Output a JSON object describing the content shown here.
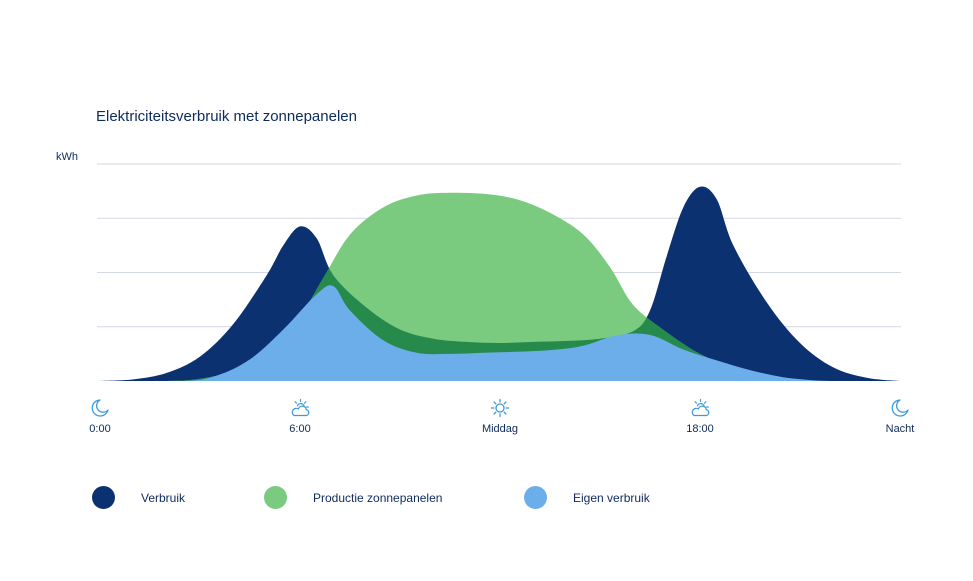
{
  "chart_data": {
    "type": "area",
    "title": "Elektriciteitsverbruik met zonnepanelen",
    "ylabel": "kWh",
    "xlabel": "",
    "x_ticks": [
      {
        "label": "0:00",
        "icon": "moon-icon"
      },
      {
        "label": "6:00",
        "icon": "partly-cloudy-icon"
      },
      {
        "label": "Middag",
        "icon": "sun-icon"
      },
      {
        "label": "18:00",
        "icon": "partly-cloudy-icon"
      },
      {
        "label": "Nacht",
        "icon": "moon-icon"
      }
    ],
    "x_hours": [
      0,
      6,
      12,
      18,
      24
    ],
    "ylim": [
      0,
      4
    ],
    "grid": true,
    "legend_position": "bottom",
    "series": [
      {
        "name": "Verbruik",
        "color": "#0c3170",
        "points": [
          [
            0,
            0
          ],
          [
            1,
            0.03
          ],
          [
            2,
            0.15
          ],
          [
            3,
            0.45
          ],
          [
            4,
            1.05
          ],
          [
            5,
            1.95
          ],
          [
            5.5,
            2.5
          ],
          [
            6,
            2.85
          ],
          [
            6.5,
            2.63
          ],
          [
            7,
            1.95
          ],
          [
            8,
            1.35
          ],
          [
            9,
            0.95
          ],
          [
            10,
            0.78
          ],
          [
            11,
            0.72
          ],
          [
            12,
            0.7
          ],
          [
            13,
            0.72
          ],
          [
            14,
            0.74
          ],
          [
            15,
            0.78
          ],
          [
            16,
            0.92
          ],
          [
            16.5,
            1.3
          ],
          [
            17,
            2.3
          ],
          [
            17.5,
            3.2
          ],
          [
            18,
            3.58
          ],
          [
            18.5,
            3.35
          ],
          [
            19,
            2.5
          ],
          [
            20,
            1.45
          ],
          [
            21,
            0.7
          ],
          [
            22,
            0.25
          ],
          [
            23,
            0.06
          ],
          [
            24,
            0
          ]
        ]
      },
      {
        "name": "Productie zonnepanelen",
        "color": "#7acb80",
        "points": [
          [
            0,
            0
          ],
          [
            2,
            0
          ],
          [
            3,
            0.04
          ],
          [
            4,
            0.2
          ],
          [
            5,
            0.6
          ],
          [
            6,
            1.2
          ],
          [
            6.7,
            1.9
          ],
          [
            7.5,
            2.7
          ],
          [
            8.5,
            3.2
          ],
          [
            9.5,
            3.42
          ],
          [
            10.5,
            3.47
          ],
          [
            11.5,
            3.45
          ],
          [
            12.5,
            3.35
          ],
          [
            13.5,
            3.1
          ],
          [
            14.5,
            2.7
          ],
          [
            15.3,
            2.1
          ],
          [
            16,
            1.4
          ],
          [
            17,
            0.9
          ],
          [
            18,
            0.5
          ],
          [
            19,
            0.25
          ],
          [
            20,
            0.1
          ],
          [
            21,
            0.02
          ],
          [
            22,
            0
          ],
          [
            24,
            0
          ]
        ]
      },
      {
        "name": "Eigen verbruik",
        "color": "#6caeea",
        "points": [
          [
            0,
            0
          ],
          [
            2.5,
            0
          ],
          [
            3.5,
            0.1
          ],
          [
            4.5,
            0.4
          ],
          [
            5.5,
            0.95
          ],
          [
            6.5,
            1.6
          ],
          [
            7,
            1.75
          ],
          [
            7.5,
            1.3
          ],
          [
            8.5,
            0.75
          ],
          [
            9.5,
            0.52
          ],
          [
            10.5,
            0.5
          ],
          [
            11.5,
            0.52
          ],
          [
            12.5,
            0.54
          ],
          [
            13.5,
            0.57
          ],
          [
            14.5,
            0.65
          ],
          [
            15.5,
            0.84
          ],
          [
            16.5,
            0.85
          ],
          [
            17.5,
            0.58
          ],
          [
            18.5,
            0.38
          ],
          [
            19.5,
            0.2
          ],
          [
            20.5,
            0.07
          ],
          [
            21.5,
            0.01
          ],
          [
            22,
            0
          ],
          [
            24,
            0
          ]
        ]
      }
    ]
  }
}
